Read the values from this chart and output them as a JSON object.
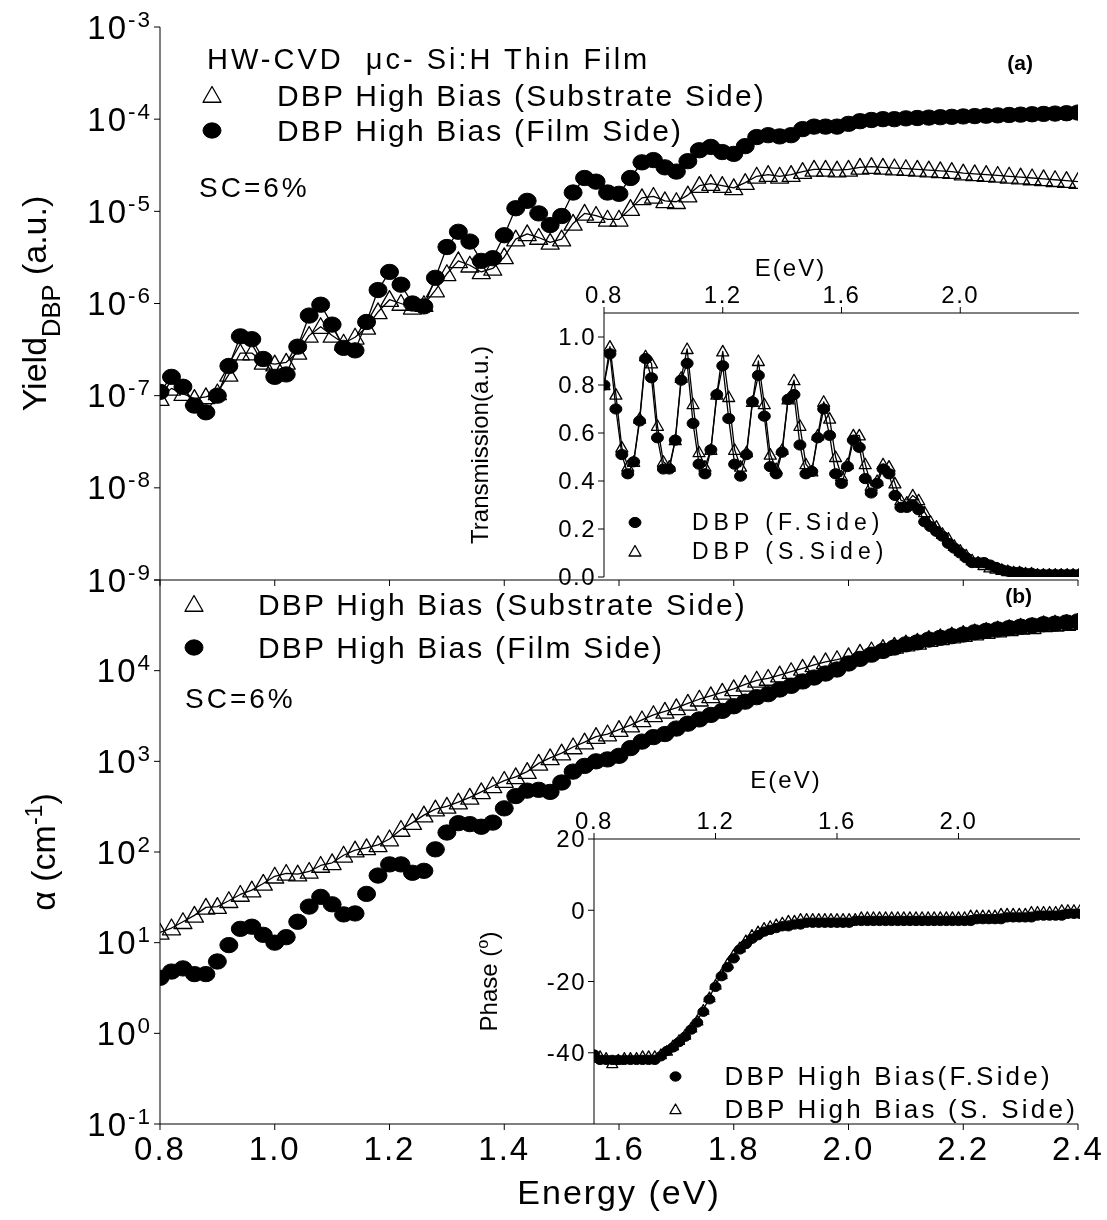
{
  "chart_data": [
    {
      "type": "line",
      "title": "HW-CVD  μc- Si:H Thin Film",
      "ylabel": "Yield$_{DBP}$ (a.u.)",
      "log": "y",
      "legend": "top left",
      "tick_labels": "y",
      "annotations": [
        "SC=6%",
        "(a)"
      ],
      "xlim": [
        0.8,
        2.4
      ],
      "xticks": [
        {
          "value": 0.8,
          "label": null
        },
        {
          "value": 1.0,
          "label": null
        },
        {
          "value": 1.2,
          "label": null
        },
        {
          "value": 1.4,
          "label": null
        },
        {
          "value": 1.6,
          "label": null
        },
        {
          "value": 1.8,
          "label": null
        },
        {
          "value": 2.0,
          "label": null
        },
        {
          "value": 2.2,
          "label": null
        },
        {
          "value": 2.4,
          "label": null
        }
      ],
      "ylim": [
        1e-09,
        0.001
      ],
      "yticks": [
        {
          "value": 1e-09,
          "label": "10$^{-9}$"
        },
        {
          "value": 1e-08,
          "label": "10$^{-8}$"
        },
        {
          "value": 1e-07,
          "label": "10$^{-7}$"
        },
        {
          "value": 1e-06,
          "label": "10$^{-6}$"
        },
        {
          "value": 1e-05,
          "label": "10$^{-5}$"
        },
        {
          "value": 0.0001,
          "label": "10$^{-4}$"
        },
        {
          "value": 0.001,
          "label": "10$^{-3}$"
        }
      ],
      "x": [
        0.8,
        0.82,
        0.84,
        0.86,
        0.88,
        0.9,
        0.92,
        0.94,
        0.96,
        0.98,
        1.0,
        1.02,
        1.04,
        1.06,
        1.08,
        1.1,
        1.12,
        1.14,
        1.16,
        1.18,
        1.2,
        1.22,
        1.24,
        1.26,
        1.28,
        1.3,
        1.32,
        1.34,
        1.36,
        1.38,
        1.4,
        1.42,
        1.44,
        1.46,
        1.48,
        1.5,
        1.52,
        1.54,
        1.56,
        1.58,
        1.6,
        1.62,
        1.64,
        1.66,
        1.68,
        1.7,
        1.72,
        1.74,
        1.76,
        1.78,
        1.8,
        1.82,
        1.84,
        1.86,
        1.88,
        1.9,
        1.92,
        1.94,
        1.96,
        1.98,
        2.0,
        2.02,
        2.04,
        2.06,
        2.08,
        2.1,
        2.12,
        2.14,
        2.16,
        2.18,
        2.2,
        2.22,
        2.24,
        2.26,
        2.28,
        2.3,
        2.32,
        2.34,
        2.36,
        2.38,
        2.4
      ],
      "series": [
        {
          "name": "DBP High Bias (Substrate Side)",
          "color": "#000000",
          "marker": "triangle",
          "values": [
            9.3e-08,
            1.2e-07,
            1.05e-07,
            9.3e-08,
            9.7e-08,
            1.07e-07,
            1.7e-07,
            2.9e-07,
            2.9e-07,
            2.3e-07,
            2.2e-07,
            2.3e-07,
            2.95e-07,
            4.5e-07,
            5.6e-07,
            4.5e-07,
            3.7e-07,
            4.3e-07,
            5.5e-07,
            8.1e-07,
            1.1e-06,
            1e-06,
            9.1e-07,
            9.7e-07,
            1.4e-06,
            2.1e-06,
            2.9e-06,
            2.6e-06,
            2.2e-06,
            2.4e-06,
            3.2e-06,
            5e-06,
            5.7e-06,
            5.2e-06,
            4.6e-06,
            5e-06,
            7.4e-06,
            9.5e-06,
            9e-06,
            8.2e-06,
            8.2e-06,
            1.07e-05,
            1.4e-05,
            1.45e-05,
            1.3e-05,
            1.27e-05,
            1.5e-05,
            1.9e-05,
            2e-05,
            1.9e-05,
            1.8e-05,
            2.05e-05,
            2.4e-05,
            2.5e-05,
            2.4e-05,
            2.5e-05,
            2.7e-05,
            2.85e-05,
            2.85e-05,
            2.8e-05,
            2.85e-05,
            3e-05,
            3.05e-05,
            3e-05,
            2.95e-05,
            2.9e-05,
            2.85e-05,
            2.8e-05,
            2.75e-05,
            2.7e-05,
            2.6e-05,
            2.55e-05,
            2.5e-05,
            2.45e-05,
            2.4e-05,
            2.35e-05,
            2.3e-05,
            2.25e-05,
            2.2e-05,
            2.15e-05,
            2.1e-05
          ]
        },
        {
          "name": "DBP High Bias (Film Side)",
          "color": "#000000",
          "marker": "circle",
          "values": [
            1.1e-07,
            1.6e-07,
            1.25e-07,
            7.8e-08,
            6.6e-08,
            1e-07,
            2.1e-07,
            4.4e-07,
            4.1e-07,
            2.5e-07,
            1.6e-07,
            1.7e-07,
            3.4e-07,
            7.4e-07,
            9.7e-07,
            5.9e-07,
            3.3e-07,
            3.1e-07,
            6.3e-07,
            1.4e-06,
            2.2e-06,
            1.6e-06,
            1e-06,
            9.3e-07,
            1.9e-06,
            4.1e-06,
            6e-06,
            4.7e-06,
            2.9e-06,
            3.1e-06,
            5.5e-06,
            1.08e-05,
            1.3e-05,
            9.5e-06,
            7.1e-06,
            8.9e-06,
            1.6e-05,
            2.3e-05,
            2.1e-05,
            1.6e-05,
            1.55e-05,
            2.3e-05,
            3.4e-05,
            3.6e-05,
            3e-05,
            2.7e-05,
            3.5e-05,
            4.6e-05,
            5e-05,
            4.4e-05,
            4.2e-05,
            5.1e-05,
            6.4e-05,
            6.7e-05,
            6.5e-05,
            6.7e-05,
            7.8e-05,
            8.3e-05,
            8.3e-05,
            8.3e-05,
            8.9e-05,
            9.5e-05,
            9.8e-05,
            0.0001,
            0.0001,
            0.000102,
            0.000103,
            0.000104,
            0.000105,
            0.000106,
            0.000107,
            0.000108,
            0.000109,
            0.00011,
            0.000111,
            0.000112,
            0.000113,
            0.000114,
            0.000115,
            0.000116,
            0.000118
          ]
        }
      ]
    },
    {
      "type": "line",
      "xlabel": "Energy (eV)",
      "ylabel": "α (cm$^{-1}$)",
      "log": "y",
      "legend": "top left",
      "annotations": [
        "SC=6%",
        "(b)"
      ],
      "xlim": [
        0.8,
        2.4
      ],
      "xticks": [
        0.8,
        {
          "value": 1.0,
          "label": "1.0"
        },
        1.2,
        1.4,
        1.6,
        1.8,
        {
          "value": 2.0,
          "label": "2.0"
        },
        2.2,
        2.4
      ],
      "ylim": [
        0.1,
        100000.0
      ],
      "yticks": [
        {
          "value": 0.1,
          "label": "10$^{-1}$"
        },
        {
          "value": 1,
          "label": "10$^{0}$"
        },
        {
          "value": 10,
          "label": "10$^{1}$"
        },
        {
          "value": 100,
          "label": "10$^{2}$"
        },
        {
          "value": 1000,
          "label": "10$^{3}$"
        },
        {
          "value": 10000,
          "label": "10$^{4}$"
        },
        {
          "value": 100000,
          "label": null
        }
      ],
      "x": [
        0.8,
        0.82,
        0.84,
        0.86,
        0.88,
        0.9,
        0.92,
        0.94,
        0.96,
        0.98,
        1.0,
        1.02,
        1.04,
        1.06,
        1.08,
        1.1,
        1.12,
        1.14,
        1.16,
        1.18,
        1.2,
        1.22,
        1.24,
        1.26,
        1.28,
        1.3,
        1.32,
        1.34,
        1.36,
        1.38,
        1.4,
        1.42,
        1.44,
        1.46,
        1.48,
        1.5,
        1.52,
        1.54,
        1.56,
        1.58,
        1.6,
        1.62,
        1.64,
        1.66,
        1.68,
        1.7,
        1.72,
        1.74,
        1.76,
        1.78,
        1.8,
        1.82,
        1.84,
        1.86,
        1.88,
        1.9,
        1.92,
        1.94,
        1.96,
        1.98,
        2.0,
        2.02,
        2.04,
        2.06,
        2.08,
        2.1,
        2.12,
        2.14,
        2.16,
        2.18,
        2.2,
        2.22,
        2.24,
        2.26,
        2.28,
        2.3,
        2.32,
        2.34,
        2.36,
        2.38,
        2.4
      ],
      "series": [
        {
          "name": "DBP High Bias (Substrate Side)",
          "color": "#000000",
          "marker": "triangle",
          "values": [
            13,
            14.5,
            17,
            20,
            24.5,
            25,
            29,
            34,
            38,
            45,
            54,
            58,
            57,
            61,
            71,
            76,
            92,
            105,
            111,
            120,
            139,
            177,
            211,
            255,
            297,
            319,
            355,
            400,
            460,
            535,
            614,
            673,
            770,
            950,
            1090,
            1230,
            1440,
            1630,
            1870,
            2000,
            2240,
            2510,
            2860,
            3260,
            3560,
            3890,
            4360,
            4840,
            5280,
            5770,
            6290,
            7050,
            7830,
            8200,
            8930,
            9740,
            10600,
            11600,
            12500,
            13200,
            14200,
            15500,
            16500,
            17500,
            18500,
            19600,
            20500,
            22000,
            23000,
            24000,
            25000,
            26000,
            27000,
            28000,
            29000,
            30000,
            30500,
            32000,
            32500,
            33000,
            34000
          ]
        },
        {
          "name": "DBP High Bias (Film Side)",
          "type": "scatter",
          "color": "#000000",
          "marker": "circle",
          "values": [
            4.1,
            4.8,
            5.2,
            4.5,
            4.5,
            6.2,
            9.4,
            14.2,
            15,
            12.2,
            10,
            11.5,
            17,
            25,
            32,
            26.5,
            20.5,
            21,
            34.5,
            55,
            73,
            73,
            59,
            62,
            107,
            164,
            208,
            203,
            190,
            211,
            303,
            414,
            475,
            485,
            460,
            584,
            770,
            890,
            1000,
            1050,
            1150,
            1400,
            1650,
            1850,
            2000,
            2300,
            2600,
            2900,
            3250,
            3600,
            4050,
            4550,
            5100,
            5500,
            6200,
            6800,
            7600,
            8400,
            9300,
            10300,
            12000,
            13500,
            15000,
            16500,
            18000,
            19500,
            20500,
            22000,
            23000,
            24000,
            25000,
            26500,
            27500,
            28500,
            29500,
            30500,
            31500,
            32500,
            33000,
            34000,
            35000
          ]
        }
      ]
    },
    {
      "type": "line",
      "xlabel": "E(eV)",
      "ylabel": "Transmission(a.u.)",
      "legend": "bottom left",
      "xlim": [
        0.8,
        2.4
      ],
      "xticks": [
        0.8,
        1.2,
        1.6,
        {
          "value": 2.0,
          "label": "2.0"
        }
      ],
      "ylim": [
        0,
        1.1
      ],
      "yticks": [
        {
          "value": 0,
          "label": "0.0"
        },
        0.2,
        0.4,
        0.6,
        0.8,
        {
          "value": 1.0,
          "label": "1.0"
        }
      ],
      "x": [
        0.8,
        0.82,
        0.84,
        0.86,
        0.88,
        0.9,
        0.92,
        0.94,
        0.96,
        0.98,
        1.0,
        1.02,
        1.04,
        1.06,
        1.08,
        1.1,
        1.12,
        1.14,
        1.16,
        1.18,
        1.2,
        1.22,
        1.24,
        1.26,
        1.28,
        1.3,
        1.32,
        1.34,
        1.36,
        1.38,
        1.4,
        1.42,
        1.44,
        1.46,
        1.48,
        1.5,
        1.52,
        1.54,
        1.56,
        1.58,
        1.6,
        1.62,
        1.64,
        1.66,
        1.68,
        1.7,
        1.72,
        1.74,
        1.76,
        1.78,
        1.8,
        1.82,
        1.84,
        1.86,
        1.88,
        1.9,
        1.92,
        1.94,
        1.96,
        1.98,
        2.0,
        2.02,
        2.04,
        2.06,
        2.08,
        2.1,
        2.12,
        2.14,
        2.16,
        2.18,
        2.2,
        2.22,
        2.24,
        2.26,
        2.28,
        2.3,
        2.32,
        2.34,
        2.36,
        2.38,
        2.4
      ],
      "series": [
        {
          "name": "DBP (F.Side)",
          "color": "#000000",
          "marker": "circle",
          "values": [
            0.8,
            0.93,
            0.7,
            0.51,
            0.43,
            0.48,
            0.65,
            0.91,
            0.83,
            0.58,
            0.45,
            0.45,
            0.57,
            0.82,
            0.89,
            0.64,
            0.47,
            0.43,
            0.53,
            0.76,
            0.88,
            0.66,
            0.47,
            0.42,
            0.51,
            0.73,
            0.84,
            0.67,
            0.46,
            0.43,
            0.52,
            0.74,
            0.76,
            0.55,
            0.43,
            0.44,
            0.58,
            0.7,
            0.59,
            0.43,
            0.39,
            0.46,
            0.57,
            0.54,
            0.41,
            0.35,
            0.39,
            0.45,
            0.43,
            0.34,
            0.29,
            0.29,
            0.3,
            0.28,
            0.23,
            0.21,
            0.19,
            0.17,
            0.14,
            0.12,
            0.1,
            0.08,
            0.06,
            0.06,
            0.06,
            0.05,
            0.04,
            0.03,
            0.025,
            0.02,
            0.02,
            0.015,
            0.015,
            0.01,
            0.01,
            0.01,
            0.01,
            0.01,
            0.01,
            0.01,
            0.01
          ]
        },
        {
          "name": "DBP (S.Side)",
          "color": "#000000",
          "marker": "triangle",
          "values": [
            0.8,
            0.96,
            0.76,
            0.54,
            0.46,
            0.48,
            0.66,
            0.92,
            0.89,
            0.63,
            0.48,
            0.46,
            0.57,
            0.83,
            0.95,
            0.72,
            0.52,
            0.46,
            0.53,
            0.76,
            0.94,
            0.75,
            0.53,
            0.46,
            0.52,
            0.73,
            0.9,
            0.72,
            0.51,
            0.45,
            0.53,
            0.74,
            0.82,
            0.63,
            0.47,
            0.44,
            0.59,
            0.73,
            0.66,
            0.5,
            0.42,
            0.47,
            0.59,
            0.59,
            0.47,
            0.38,
            0.4,
            0.47,
            0.46,
            0.39,
            0.32,
            0.31,
            0.34,
            0.32,
            0.27,
            0.23,
            0.21,
            0.18,
            0.16,
            0.13,
            0.11,
            0.09,
            0.07,
            0.06,
            0.05,
            0.04,
            0.035,
            0.03,
            0.025,
            0.02,
            0.02,
            0.015,
            0.015,
            0.01,
            0.01,
            0.01,
            0.01,
            0.01,
            0.01,
            0.01,
            0.01
          ]
        }
      ]
    },
    {
      "type": "line",
      "xlabel": "E(eV)",
      "ylabel": "Phase ($^{o}$)",
      "legend": "bottom right",
      "xlim": [
        0.8,
        2.4
      ],
      "xticks": [
        0.8,
        1.2,
        1.6,
        {
          "value": 2.0,
          "label": "2.0"
        }
      ],
      "ylim": [
        -60,
        20
      ],
      "yticks": [
        -40,
        -20,
        0,
        20
      ],
      "x": [
        0.8,
        0.82,
        0.84,
        0.86,
        0.88,
        0.9,
        0.92,
        0.94,
        0.96,
        0.98,
        1.0,
        1.02,
        1.04,
        1.06,
        1.08,
        1.1,
        1.12,
        1.14,
        1.16,
        1.18,
        1.2,
        1.22,
        1.24,
        1.26,
        1.28,
        1.3,
        1.32,
        1.34,
        1.36,
        1.38,
        1.4,
        1.42,
        1.44,
        1.46,
        1.48,
        1.5,
        1.52,
        1.54,
        1.56,
        1.58,
        1.6,
        1.62,
        1.64,
        1.66,
        1.68,
        1.7,
        1.72,
        1.74,
        1.76,
        1.78,
        1.8,
        1.82,
        1.84,
        1.86,
        1.88,
        1.9,
        1.92,
        1.94,
        1.96,
        1.98,
        2.0,
        2.02,
        2.04,
        2.06,
        2.08,
        2.1,
        2.12,
        2.14,
        2.16,
        2.18,
        2.2,
        2.22,
        2.24,
        2.26,
        2.28,
        2.3,
        2.32,
        2.34,
        2.36,
        2.38,
        2.4
      ],
      "series": [
        {
          "name": "DBP High Bias(F.Side)",
          "type": "scatter",
          "color": "#000000",
          "marker": "circle",
          "values": [
            -40.5,
            -42,
            -42,
            -42,
            -42,
            -42,
            -42,
            -42,
            -42,
            -42,
            -42,
            -41,
            -39.5,
            -38.5,
            -37,
            -35.5,
            -33.5,
            -31.5,
            -28.5,
            -25,
            -21.5,
            -18.5,
            -16,
            -13.5,
            -11,
            -9.5,
            -8,
            -7,
            -6,
            -5.5,
            -5,
            -4.5,
            -4.5,
            -4,
            -4,
            -3.5,
            -3.5,
            -3.5,
            -3.5,
            -3.5,
            -3.5,
            -3.5,
            -3.5,
            -3,
            -3,
            -3,
            -3,
            -3,
            -3,
            -3,
            -3,
            -3,
            -3,
            -3,
            -3,
            -3,
            -3,
            -3,
            -3,
            -3,
            -3,
            -3,
            -3,
            -2.5,
            -2.5,
            -2.5,
            -2.5,
            -2.5,
            -2,
            -2,
            -2,
            -2,
            -2,
            -1.5,
            -1.5,
            -1.5,
            -1.5,
            -1.5,
            -1,
            -1,
            -1
          ]
        },
        {
          "name": "DBP High Bias (S. Side)",
          "color": "#000000",
          "marker": "triangle",
          "values": [
            -41.5,
            -41,
            -41.5,
            -43,
            -42,
            -41.5,
            -41.5,
            -41.5,
            -41,
            -41,
            -41,
            -40.5,
            -39.5,
            -38,
            -36.5,
            -35,
            -33,
            -31,
            -28,
            -24.5,
            -21,
            -18,
            -15,
            -12.5,
            -10.5,
            -8.5,
            -7,
            -6,
            -5,
            -4.5,
            -4,
            -3.5,
            -3,
            -3,
            -2.5,
            -2.5,
            -2.5,
            -2.5,
            -2.5,
            -2.5,
            -2.5,
            -2.5,
            -2.5,
            -2.5,
            -2,
            -2,
            -2,
            -2,
            -2,
            -2,
            -2,
            -2,
            -2,
            -2,
            -2,
            -2,
            -2,
            -2,
            -2,
            -2,
            -2,
            -2,
            -1.5,
            -1.5,
            -1.5,
            -1.5,
            -1.5,
            -1,
            -1,
            -1,
            -1,
            -1,
            -0.5,
            -0.5,
            -0.5,
            -0.5,
            -0.5,
            0,
            0,
            0,
            0
          ]
        }
      ]
    }
  ]
}
